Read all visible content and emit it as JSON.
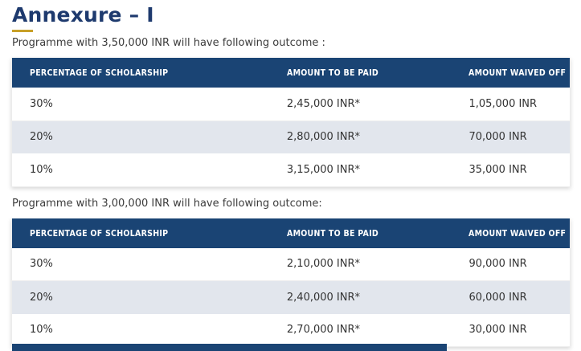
{
  "page": {
    "title": "Annexure – I",
    "intro1": "Programme with 3,50,000 INR will have following outcome :",
    "intro2": "Programme with 3,00,000 INR will have following outcome:"
  },
  "colors": {
    "header_bg": "#1a4474",
    "title_color": "#1e3a6e",
    "accent_gold": "#c8a028",
    "row_alt": "#e2e6ed"
  },
  "tables": [
    {
      "caption": "Programme with 3,50,000 INR outcomes",
      "headers": [
        "PERCENTAGE OF SCHOLARSHIP",
        "AMOUNT TO BE PAID",
        "AMOUNT WAIVED OFF"
      ],
      "rows": [
        [
          "30%",
          "2,45,000 INR*",
          "1,05,000 INR"
        ],
        [
          "20%",
          "2,80,000 INR*",
          "70,000 INR"
        ],
        [
          "10%",
          "3,15,000 INR*",
          "35,000 INR"
        ]
      ]
    },
    {
      "caption": "Programme with 3,00,000 INR outcomes",
      "headers": [
        "PERCENTAGE OF SCHOLARSHIP",
        "AMOUNT TO BE PAID",
        "AMOUNT WAIVED OFF"
      ],
      "rows": [
        [
          "30%",
          "2,10,000 INR*",
          "90,000 INR"
        ],
        [
          "20%",
          "2,40,000 INR*",
          "60,000 INR"
        ],
        [
          "10%",
          "2,70,000 INR*",
          "30,000 INR"
        ]
      ]
    }
  ]
}
